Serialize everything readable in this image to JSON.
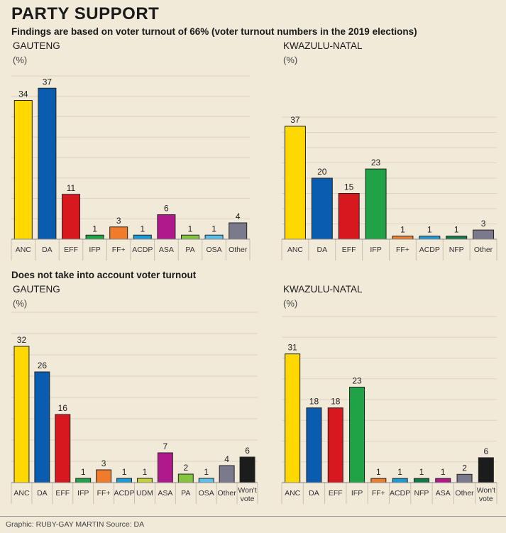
{
  "title": "PARTY SUPPORT",
  "sections": [
    "Findings are based on voter turnout of 66% (voter turnout numbers in the 2019 elections)",
    "Does not take into account voter turnout"
  ],
  "footer": "Graphic: RUBY-GAY MARTIN Source: DA",
  "colors": {
    "ANC": "#ffd800",
    "DA": "#0a5cb0",
    "EFF": "#d7191f",
    "IFP": "#20a347",
    "FF+": "#f07b2b",
    "ACDP": "#1c9ad6",
    "ASA": "#b0198c",
    "PA": "#86c440",
    "OSA": "#5cc1ea",
    "UDM": "#c5cf38",
    "NFP": "#0f7a48",
    "Other": "#7a7a8c",
    "Won't vote": "#1c1c1c",
    "background": "#f2ead9",
    "gridline": "#dcd3c2"
  },
  "chart_data": [
    {
      "type": "bar",
      "title": "GAUTENG",
      "ylabel": "(%)",
      "categories": [
        "ANC",
        "DA",
        "EFF",
        "IFP",
        "FF+",
        "ACDP",
        "ASA",
        "PA",
        "OSA",
        "Other"
      ],
      "values": [
        34,
        37,
        11,
        1,
        3,
        1,
        6,
        1,
        1,
        4
      ],
      "ylim": [
        0,
        40
      ]
    },
    {
      "type": "bar",
      "title": "KWAZULU-NATAL",
      "ylabel": "(%)",
      "categories": [
        "ANC",
        "DA",
        "EFF",
        "IFP",
        "FF+",
        "ACDP",
        "NFP",
        "Other"
      ],
      "values": [
        37,
        20,
        15,
        23,
        1,
        1,
        1,
        3
      ],
      "ylim": [
        0,
        40
      ]
    },
    {
      "type": "bar",
      "title": "GAUTENG",
      "ylabel": "(%)",
      "categories": [
        "ANC",
        "DA",
        "EFF",
        "IFP",
        "FF+",
        "ACDP",
        "UDM",
        "ASA",
        "PA",
        "OSA",
        "Other",
        "Won't vote"
      ],
      "values": [
        32,
        26,
        16,
        1,
        3,
        1,
        1,
        7,
        2,
        1,
        4,
        6
      ],
      "ylim": [
        0,
        40
      ]
    },
    {
      "type": "bar",
      "title": "KWAZULU-NATAL",
      "ylabel": "(%)",
      "categories": [
        "ANC",
        "DA",
        "EFF",
        "IFP",
        "FF+",
        "ACDP",
        "NFP",
        "ASA",
        "Other",
        "Won't vote"
      ],
      "values": [
        31,
        18,
        18,
        23,
        1,
        1,
        1,
        1,
        2,
        6
      ],
      "ylim": [
        0,
        40
      ]
    }
  ]
}
